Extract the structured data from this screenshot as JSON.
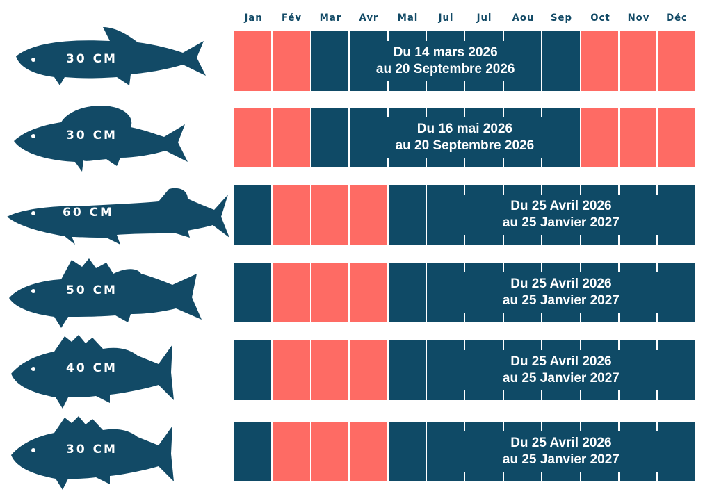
{
  "chart_data": {
    "type": "table",
    "categories": [
      "Jan",
      "Fév",
      "Mar",
      "Avr",
      "Mai",
      "Jui",
      "Jui",
      "Aou",
      "Sep",
      "Oct",
      "Nov",
      "Déc"
    ],
    "legend_colors": {
      "open": "#0f4a66",
      "closed": "#fe6b64"
    },
    "rows": [
      {
        "fish_icon": "trout-icon",
        "size": "30 CM",
        "status": [
          "closed",
          "closed",
          "open",
          "open",
          "open",
          "open",
          "open",
          "open",
          "open",
          "closed",
          "closed",
          "closed"
        ],
        "merged": [
          3,
          7
        ],
        "line1": "Du 14 mars 2026",
        "line2": "au 20 Septembre 2026"
      },
      {
        "fish_icon": "bass-icon",
        "size": "30 CM",
        "status": [
          "closed",
          "closed",
          "open",
          "open",
          "open",
          "open",
          "open",
          "open",
          "open",
          "closed",
          "closed",
          "closed"
        ],
        "merged": [
          3,
          8
        ],
        "line1": "Du 16 mai 2026",
        "line2": "au 20 Septembre 2026"
      },
      {
        "fish_icon": "pike-icon",
        "size": "60 CM",
        "status": [
          "open",
          "closed",
          "closed",
          "closed",
          "open",
          "open",
          "open",
          "open",
          "open",
          "open",
          "open",
          "open"
        ],
        "merged": [
          5,
          11
        ],
        "line1": "Du 25 Avril 2026",
        "line2": "au 25 Janvier 2027"
      },
      {
        "fish_icon": "zander-icon",
        "size": "50 CM",
        "status": [
          "open",
          "closed",
          "closed",
          "closed",
          "open",
          "open",
          "open",
          "open",
          "open",
          "open",
          "open",
          "open"
        ],
        "merged": [
          5,
          11
        ],
        "line1": "Du 25 Avril 2026",
        "line2": "au 25 Janvier 2027"
      },
      {
        "fish_icon": "perch-icon",
        "size": "40 CM",
        "status": [
          "open",
          "closed",
          "closed",
          "closed",
          "open",
          "open",
          "open",
          "open",
          "open",
          "open",
          "open",
          "open"
        ],
        "merged": [
          5,
          11
        ],
        "line1": "Du 25 Avril 2026",
        "line2": "au 25 Janvier 2027"
      },
      {
        "fish_icon": "perch-icon",
        "size": "30 CM",
        "status": [
          "open",
          "closed",
          "closed",
          "closed",
          "open",
          "open",
          "open",
          "open",
          "open",
          "open",
          "open",
          "open"
        ],
        "merged": [
          5,
          11
        ],
        "line1": "Du 25 Avril 2026",
        "line2": "au 25 Janvier 2027"
      }
    ]
  }
}
